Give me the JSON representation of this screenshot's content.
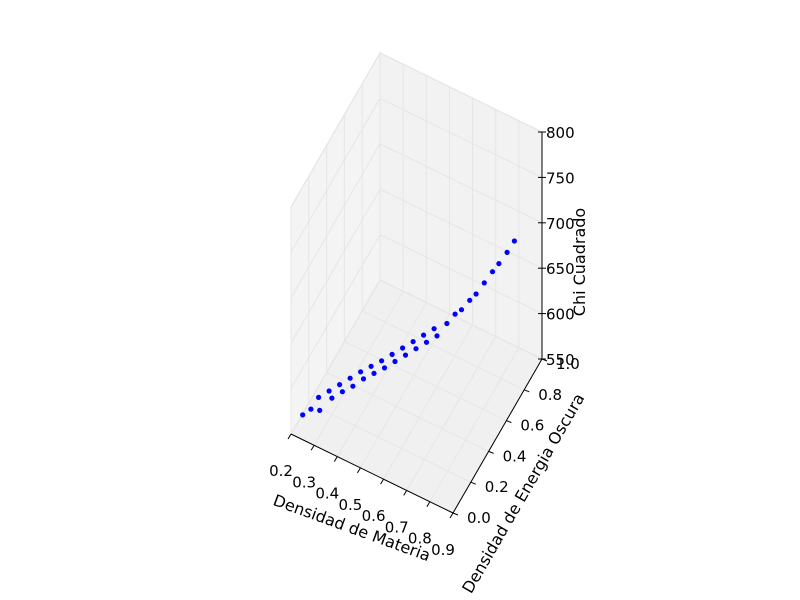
{
  "chart_data": {
    "type": "scatter",
    "projection": "3d",
    "title": "",
    "xlabel": "Densidad de Materia",
    "ylabel": "Densidad de Energia Oscura",
    "zlabel": "Chi Cuadrado",
    "xlim": [
      0.2,
      0.9
    ],
    "ylim": [
      0.0,
      1.0
    ],
    "zlim": [
      550,
      800
    ],
    "x_ticks": [
      "0.2",
      "0.3",
      "0.4",
      "0.5",
      "0.6",
      "0.7",
      "0.8",
      "0.9"
    ],
    "y_ticks": [
      "0.0",
      "0.2",
      "0.4",
      "0.6",
      "0.8",
      "1.0"
    ],
    "z_ticks": [
      "550",
      "600",
      "650",
      "700",
      "750",
      "800"
    ],
    "grid": true,
    "marker_color": "#0000ff",
    "pane_color": "#f2f2f2",
    "grid_color": "#e6e6e6",
    "series": [
      {
        "points": [
          [
            0.22,
            0.08,
            560
          ],
          [
            0.24,
            0.12,
            562
          ],
          [
            0.25,
            0.18,
            566
          ],
          [
            0.27,
            0.14,
            561
          ],
          [
            0.28,
            0.22,
            570
          ],
          [
            0.3,
            0.2,
            568
          ],
          [
            0.31,
            0.26,
            574
          ],
          [
            0.33,
            0.24,
            572
          ],
          [
            0.34,
            0.3,
            578
          ],
          [
            0.36,
            0.28,
            575
          ],
          [
            0.37,
            0.34,
            582
          ],
          [
            0.39,
            0.32,
            580
          ],
          [
            0.4,
            0.38,
            585
          ],
          [
            0.42,
            0.36,
            583
          ],
          [
            0.43,
            0.42,
            588
          ],
          [
            0.45,
            0.4,
            586
          ],
          [
            0.46,
            0.46,
            592
          ],
          [
            0.48,
            0.44,
            590
          ],
          [
            0.49,
            0.5,
            596
          ],
          [
            0.51,
            0.48,
            594
          ],
          [
            0.52,
            0.54,
            600
          ],
          [
            0.54,
            0.52,
            598
          ],
          [
            0.55,
            0.58,
            604
          ],
          [
            0.57,
            0.56,
            602
          ],
          [
            0.58,
            0.62,
            608
          ],
          [
            0.6,
            0.6,
            606
          ],
          [
            0.62,
            0.66,
            612
          ],
          [
            0.64,
            0.7,
            618
          ],
          [
            0.66,
            0.72,
            622
          ],
          [
            0.68,
            0.76,
            628
          ],
          [
            0.7,
            0.78,
            634
          ],
          [
            0.72,
            0.82,
            642
          ],
          [
            0.74,
            0.86,
            650
          ],
          [
            0.76,
            0.88,
            658
          ],
          [
            0.78,
            0.92,
            666
          ],
          [
            0.8,
            0.95,
            676
          ]
        ]
      }
    ]
  }
}
